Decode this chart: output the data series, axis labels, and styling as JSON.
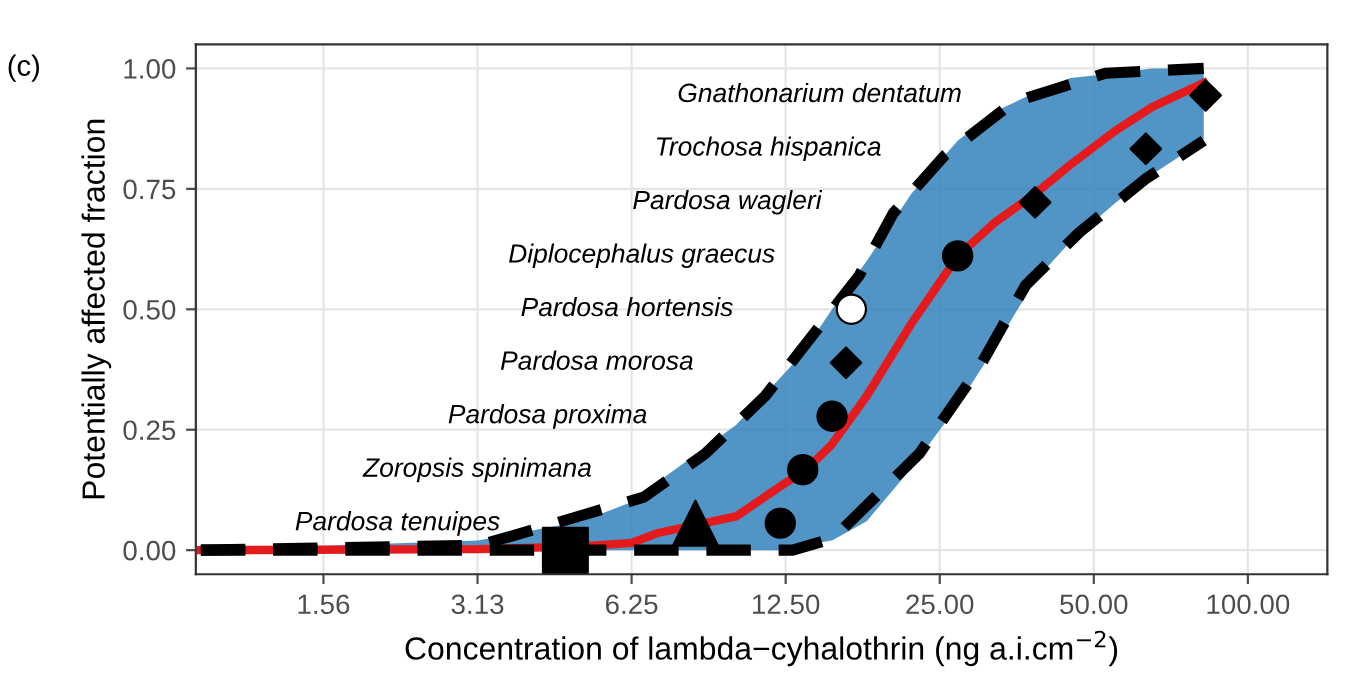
{
  "chart_data": {
    "type": "line",
    "xlabel": "Concentration of lambda−cyhalothrin (ng a.i.cm$^{−2}$)",
    "ylabel": "Potentially affected fraction",
    "log": "x",
    "xlim": [
      0.88,
      143
    ],
    "xticks": [
      {
        "value": 1.5625,
        "label": "1.56"
      },
      {
        "value": 3.125,
        "label": "3.13"
      },
      {
        "value": 6.25,
        "label": "6.25"
      },
      {
        "value": 12.5,
        "label": "12.50"
      },
      {
        "value": 25,
        "label": "25.00"
      },
      {
        "value": 50,
        "label": "50.00"
      },
      {
        "value": 100,
        "label": "100.00"
      }
    ],
    "ylim": [
      -0.05,
      1.05
    ],
    "yticks": [
      {
        "value": 0,
        "label": "0.00"
      },
      {
        "value": 0.25,
        "label": "0.25"
      },
      {
        "value": 0.5,
        "label": "0.50"
      },
      {
        "value": 0.75,
        "label": "0.75"
      },
      {
        "value": 1,
        "label": "1.00"
      }
    ],
    "grid": true,
    "legend": false,
    "series": [
      {
        "color": "#e41a1c",
        "line_style": "solid",
        "x": [
          0.9,
          3.13,
          5,
          6.25,
          7,
          10,
          12.5,
          13.5,
          15.4,
          18,
          22,
          27.1,
          32,
          38.4,
          45,
          55,
          65,
          82
        ],
        "values": [
          0,
          0.002,
          0.008,
          0.015,
          0.035,
          0.07,
          0.14,
          0.16,
          0.22,
          0.32,
          0.47,
          0.61,
          0.68,
          0.74,
          0.8,
          0.87,
          0.92,
          0.97
        ],
        "lower": [
          0,
          0,
          0,
          0,
          0,
          0,
          0,
          0.01,
          0.02,
          0.06,
          0.17,
          0.3,
          0.42,
          0.56,
          0.64,
          0.72,
          0.78,
          0.85
        ],
        "upper": [
          0,
          0.02,
          0.06,
          0.1,
          0.14,
          0.26,
          0.37,
          0.41,
          0.5,
          0.6,
          0.74,
          0.85,
          0.91,
          0.95,
          0.98,
          0.99,
          1.0,
          1.0
        ]
      },
      {
        "type": "line",
        "color": "#000000",
        "line_style": "dashed",
        "x": [
          0.9,
          3.13,
          3.67,
          6.6,
          8.7,
          11.4,
          17.4,
          20.3,
          25.6,
          34.8,
          52.7,
          82
        ],
        "values": [
          0,
          0.01,
          0.03,
          0.11,
          0.2,
          0.32,
          0.57,
          0.7,
          0.82,
          0.93,
          0.99,
          1.0
        ]
      },
      {
        "type": "line",
        "color": "#000000",
        "line_style": "dashed",
        "x": [
          0.9,
          6.25,
          12.9,
          15.5,
          22.8,
          29.9,
          36.8,
          46.9,
          63,
          82
        ],
        "values": [
          0,
          0,
          0,
          0.025,
          0.2,
          0.38,
          0.55,
          0.66,
          0.77,
          0.85
        ]
      },
      {
        "type": "scatter",
        "marker": "square",
        "color": "#000000",
        "x": [
          4.64
        ],
        "values": [
          0.0
        ]
      },
      {
        "type": "scatter",
        "marker": "triangle",
        "color": "#000000",
        "x": [
          8.33
        ],
        "values": [
          0.056
        ]
      },
      {
        "type": "scatter",
        "marker": "circle",
        "color": "#000000",
        "x": [
          12.2,
          13.5,
          15.4,
          27.1
        ],
        "values": [
          0.056,
          0.167,
          0.278,
          0.611
        ]
      },
      {
        "type": "scatter",
        "marker": "circle",
        "color": "#ffffff",
        "x": [
          16.8
        ],
        "values": [
          0.5
        ]
      },
      {
        "type": "scatter",
        "marker": "diamond",
        "color": "#000000",
        "x": [
          16.4,
          38.4,
          63.2,
          82.7
        ],
        "values": [
          0.389,
          0.722,
          0.833,
          0.944
        ]
      }
    ],
    "annotations": [
      "(c)",
      "Pardosa tenuipes",
      "Zoropsis spinimana",
      "Pardosa proxima",
      "Pardosa morosa",
      "Pardosa hortensis",
      "Diplocephalus graecus",
      "Pardosa wagleri",
      "Trochosa hispanica",
      "Gnathonarium dentatum"
    ]
  }
}
